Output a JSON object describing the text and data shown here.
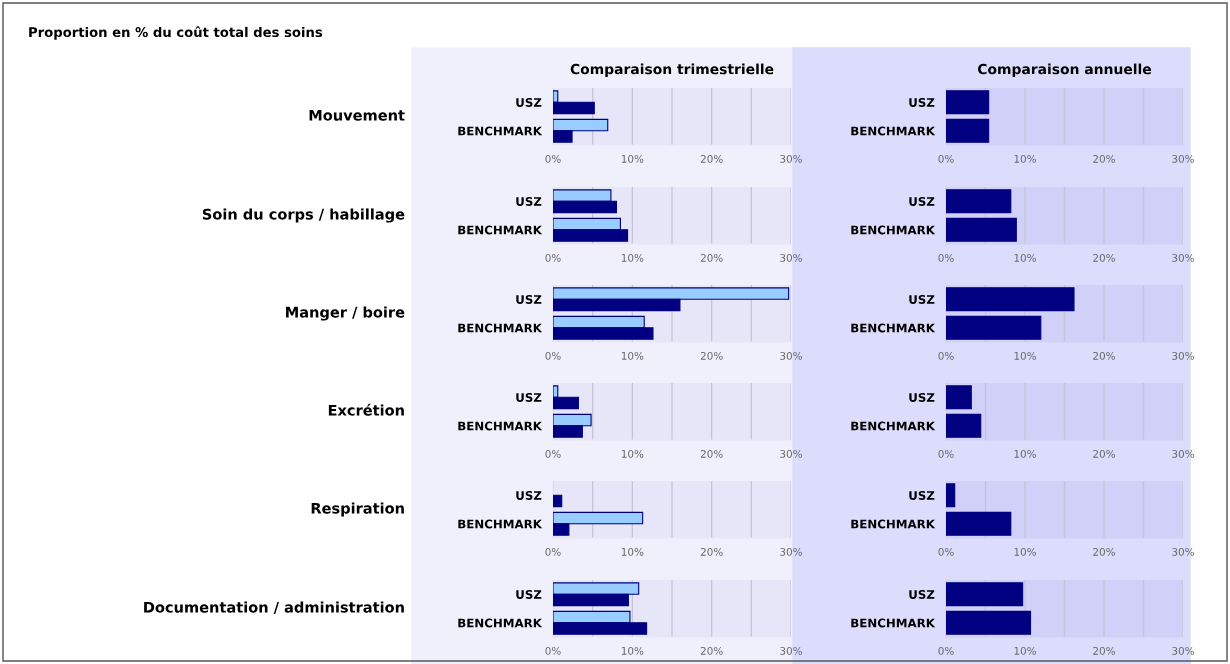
{
  "chart_data": [
    {
      "type": "bar",
      "orientation": "horizontal",
      "title": "Comparaison trimestrielle",
      "ylabel": "Mouvement",
      "annotations": [
        "Proportion en % du coût total des soins"
      ],
      "categories": [
        "USZ",
        "BENCHMARK"
      ],
      "series": [
        {
          "color": "#99ccff",
          "values": [
            0.6,
            6.9
          ]
        },
        {
          "color": "#000080",
          "values": [
            5.2,
            2.4
          ]
        }
      ],
      "xlim": [
        0,
        30
      ],
      "xticks": [
        {
          "value": 0,
          "label": "0%"
        },
        {
          "value": 5,
          "label": null
        },
        {
          "value": 10,
          "label": "10%"
        },
        {
          "value": 15,
          "label": null
        },
        {
          "value": 20,
          "label": "20%"
        },
        {
          "value": 25,
          "label": null
        },
        {
          "value": 30,
          "label": "30%"
        }
      ],
      "grid": "x"
    },
    {
      "type": "bar",
      "orientation": "horizontal",
      "title": "Comparaison annuelle",
      "categories": [
        "USZ",
        "BENCHMARK"
      ],
      "series": [
        {
          "color": "#000080",
          "values": [
            5.4,
            5.4
          ]
        }
      ],
      "xlim": [
        0,
        30
      ],
      "xticks": [
        {
          "value": 0,
          "label": "0%"
        },
        {
          "value": 5,
          "label": null
        },
        {
          "value": 10,
          "label": "10%"
        },
        {
          "value": 15,
          "label": null
        },
        {
          "value": 20,
          "label": "20%"
        },
        {
          "value": 25,
          "label": null
        },
        {
          "value": 30,
          "label": "30%"
        }
      ],
      "grid": "x"
    },
    {
      "type": "bar",
      "orientation": "horizontal",
      "ylabel": "Soin du corps / habillage",
      "categories": [
        "USZ",
        "BENCHMARK"
      ],
      "series": [
        {
          "color": "#99ccff",
          "values": [
            7.3,
            8.5
          ]
        },
        {
          "color": "#000080",
          "values": [
            8.0,
            9.4
          ]
        }
      ],
      "xlim": [
        0,
        30
      ],
      "xticks": [
        {
          "value": 0,
          "label": "0%"
        },
        {
          "value": 5,
          "label": null
        },
        {
          "value": 10,
          "label": "10%"
        },
        {
          "value": 15,
          "label": null
        },
        {
          "value": 20,
          "label": "20%"
        },
        {
          "value": 25,
          "label": null
        },
        {
          "value": 30,
          "label": "30%"
        }
      ],
      "grid": "x"
    },
    {
      "type": "bar",
      "orientation": "horizontal",
      "categories": [
        "USZ",
        "BENCHMARK"
      ],
      "series": [
        {
          "color": "#000080",
          "values": [
            8.2,
            8.9
          ]
        }
      ],
      "xlim": [
        0,
        30
      ],
      "xticks": [
        {
          "value": 0,
          "label": "0%"
        },
        {
          "value": 5,
          "label": null
        },
        {
          "value": 10,
          "label": "10%"
        },
        {
          "value": 15,
          "label": null
        },
        {
          "value": 20,
          "label": "20%"
        },
        {
          "value": 25,
          "label": null
        },
        {
          "value": 30,
          "label": "30%"
        }
      ],
      "grid": "x"
    },
    {
      "type": "bar",
      "orientation": "horizontal",
      "ylabel": "Manger / boire",
      "categories": [
        "USZ",
        "BENCHMARK"
      ],
      "series": [
        {
          "color": "#99ccff",
          "values": [
            29.7,
            11.5
          ]
        },
        {
          "color": "#000080",
          "values": [
            16.0,
            12.6
          ]
        }
      ],
      "xlim": [
        0,
        30
      ],
      "xticks": [
        {
          "value": 0,
          "label": "0%"
        },
        {
          "value": 5,
          "label": null
        },
        {
          "value": 10,
          "label": "10%"
        },
        {
          "value": 15,
          "label": null
        },
        {
          "value": 20,
          "label": "20%"
        },
        {
          "value": 25,
          "label": null
        },
        {
          "value": 30,
          "label": "30%"
        }
      ],
      "grid": "x"
    },
    {
      "type": "bar",
      "orientation": "horizontal",
      "categories": [
        "USZ",
        "BENCHMARK"
      ],
      "series": [
        {
          "color": "#000080",
          "values": [
            16.2,
            12.0
          ]
        }
      ],
      "xlim": [
        0,
        30
      ],
      "xticks": [
        {
          "value": 0,
          "label": "0%"
        },
        {
          "value": 5,
          "label": null
        },
        {
          "value": 10,
          "label": "10%"
        },
        {
          "value": 15,
          "label": null
        },
        {
          "value": 20,
          "label": "20%"
        },
        {
          "value": 25,
          "label": null
        },
        {
          "value": 30,
          "label": "30%"
        }
      ],
      "grid": "x"
    },
    {
      "type": "bar",
      "orientation": "horizontal",
      "ylabel": "Excrétion",
      "categories": [
        "USZ",
        "BENCHMARK"
      ],
      "series": [
        {
          "color": "#99ccff",
          "values": [
            0.6,
            4.8
          ]
        },
        {
          "color": "#000080",
          "values": [
            3.2,
            3.7
          ]
        }
      ],
      "xlim": [
        0,
        30
      ],
      "xticks": [
        {
          "value": 0,
          "label": "0%"
        },
        {
          "value": 5,
          "label": null
        },
        {
          "value": 10,
          "label": "10%"
        },
        {
          "value": 15,
          "label": null
        },
        {
          "value": 20,
          "label": "20%"
        },
        {
          "value": 25,
          "label": null
        },
        {
          "value": 30,
          "label": "30%"
        }
      ],
      "grid": "x"
    },
    {
      "type": "bar",
      "orientation": "horizontal",
      "categories": [
        "USZ",
        "BENCHMARK"
      ],
      "series": [
        {
          "color": "#000080",
          "values": [
            3.2,
            4.4
          ]
        }
      ],
      "xlim": [
        0,
        30
      ],
      "xticks": [
        {
          "value": 0,
          "label": "0%"
        },
        {
          "value": 5,
          "label": null
        },
        {
          "value": 10,
          "label": "10%"
        },
        {
          "value": 15,
          "label": null
        },
        {
          "value": 20,
          "label": "20%"
        },
        {
          "value": 25,
          "label": null
        },
        {
          "value": 30,
          "label": "30%"
        }
      ],
      "grid": "x"
    },
    {
      "type": "bar",
      "orientation": "horizontal",
      "ylabel": "Respiration",
      "categories": [
        "USZ",
        "BENCHMARK"
      ],
      "series": [
        {
          "color": "#99ccff",
          "values": [
            null,
            11.3
          ]
        },
        {
          "color": "#000080",
          "values": [
            1.1,
            2.0
          ]
        }
      ],
      "xlim": [
        0,
        30
      ],
      "xticks": [
        {
          "value": 0,
          "label": "0%"
        },
        {
          "value": 5,
          "label": null
        },
        {
          "value": 10,
          "label": "10%"
        },
        {
          "value": 15,
          "label": null
        },
        {
          "value": 20,
          "label": "20%"
        },
        {
          "value": 25,
          "label": null
        },
        {
          "value": 30,
          "label": "30%"
        }
      ],
      "grid": "x"
    },
    {
      "type": "bar",
      "orientation": "horizontal",
      "categories": [
        "USZ",
        "BENCHMARK"
      ],
      "series": [
        {
          "color": "#000080",
          "values": [
            1.1,
            8.2
          ]
        }
      ],
      "xlim": [
        0,
        30
      ],
      "xticks": [
        {
          "value": 0,
          "label": "0%"
        },
        {
          "value": 5,
          "label": null
        },
        {
          "value": 10,
          "label": "10%"
        },
        {
          "value": 15,
          "label": null
        },
        {
          "value": 20,
          "label": "20%"
        },
        {
          "value": 25,
          "label": null
        },
        {
          "value": 30,
          "label": "30%"
        }
      ],
      "grid": "x"
    },
    {
      "type": "bar",
      "orientation": "horizontal",
      "ylabel": "Documentation / administration",
      "categories": [
        "USZ",
        "BENCHMARK"
      ],
      "series": [
        {
          "color": "#99ccff",
          "values": [
            10.8,
            9.7
          ]
        },
        {
          "color": "#000080",
          "values": [
            9.5,
            11.8
          ]
        }
      ],
      "xlim": [
        0,
        30
      ],
      "xticks": [
        {
          "value": 0,
          "label": "0%"
        },
        {
          "value": 5,
          "label": null
        },
        {
          "value": 10,
          "label": "10%"
        },
        {
          "value": 15,
          "label": null
        },
        {
          "value": 20,
          "label": "20%"
        },
        {
          "value": 25,
          "label": null
        },
        {
          "value": 30,
          "label": "30%"
        }
      ],
      "grid": "x"
    },
    {
      "type": "bar",
      "orientation": "horizontal",
      "categories": [
        "USZ",
        "BENCHMARK"
      ],
      "series": [
        {
          "color": "#000080",
          "values": [
            9.7,
            10.7
          ]
        }
      ],
      "xlim": [
        0,
        30
      ],
      "xticks": [
        {
          "value": 0,
          "label": "0%"
        },
        {
          "value": 5,
          "label": null
        },
        {
          "value": 10,
          "label": "10%"
        },
        {
          "value": 15,
          "label": null
        },
        {
          "value": 20,
          "label": "20%"
        },
        {
          "value": 25,
          "label": null
        },
        {
          "value": 30,
          "label": "30%"
        }
      ],
      "grid": "x"
    }
  ]
}
